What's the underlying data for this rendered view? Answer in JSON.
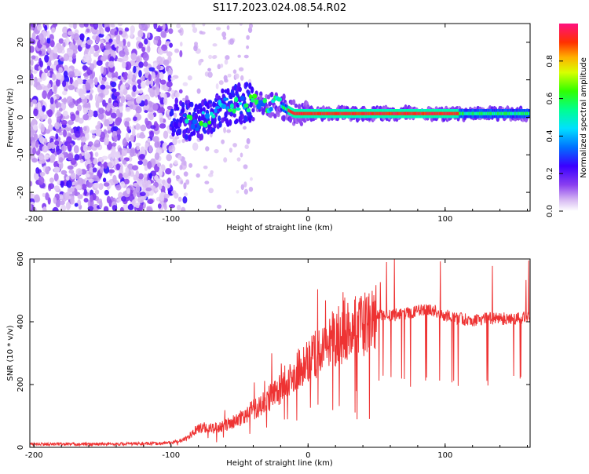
{
  "title": "S117.2023.024.08.54.R02",
  "chart_data": [
    {
      "type": "heatmap",
      "xlabel": "Height of straight line (km)",
      "ylabel": "Frequency (Hz)",
      "xlim": [
        -203,
        162
      ],
      "ylim": [
        -25,
        25
      ],
      "xticks": [
        -200,
        -100,
        0,
        100
      ],
      "yticks": [
        20,
        10,
        0,
        -10,
        -20
      ],
      "colorbar": {
        "label": "Normalized spectral amplitude",
        "range": [
          0,
          1
        ],
        "ticks": [
          0.0,
          0.2,
          0.4,
          0.6,
          0.8
        ]
      },
      "signal_track": [
        {
          "x": -100,
          "y": 0
        },
        {
          "x": -80,
          "y": -1.5
        },
        {
          "x": -60,
          "y": 3
        },
        {
          "x": -40,
          "y": 4
        },
        {
          "x": -20,
          "y": 3
        },
        {
          "x": -10,
          "y": 1
        },
        {
          "x": 0,
          "y": 1
        },
        {
          "x": 20,
          "y": 1
        },
        {
          "x": 60,
          "y": 1
        },
        {
          "x": 80,
          "y": 1
        },
        {
          "x": 110,
          "y": 1
        },
        {
          "x": 162,
          "y": 1
        }
      ]
    },
    {
      "type": "line",
      "xlabel": "Height of straight line (km)",
      "ylabel": "SNR (10 * v/v)",
      "xlim": [
        -203,
        162
      ],
      "ylim": [
        0,
        600
      ],
      "xticks": [
        -200,
        -100,
        0,
        100
      ],
      "yticks": [
        600,
        400,
        200,
        0
      ],
      "series_color": "#ee3333",
      "series": [
        {
          "x": [
            -203,
            -150,
            -110,
            -100,
            -90,
            -80,
            -70,
            -60,
            -50,
            -40,
            -30,
            -20,
            -10,
            0,
            10,
            20,
            30,
            40,
            50,
            60,
            70,
            80,
            90,
            100,
            110,
            120,
            130,
            140,
            150,
            160,
            162
          ],
          "y": [
            10,
            10,
            12,
            15,
            25,
            60,
            60,
            70,
            90,
            120,
            150,
            190,
            240,
            270,
            310,
            350,
            380,
            390,
            420,
            420,
            425,
            435,
            440,
            420,
            410,
            405,
            410,
            410,
            410,
            415,
            405
          ]
        }
      ]
    }
  ]
}
